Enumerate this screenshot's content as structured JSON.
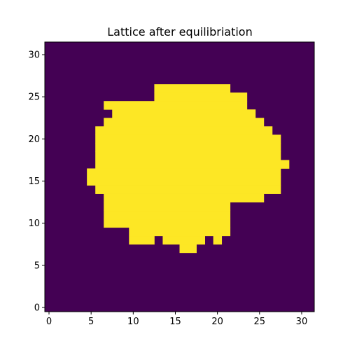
{
  "chart_data": {
    "type": "heatmap",
    "title": "Lattice after equilibriation",
    "xlabel": "",
    "ylabel": "",
    "xlim": [
      -0.5,
      31.5
    ],
    "ylim": [
      -0.5,
      31.5
    ],
    "origin": "lower",
    "grid_size": [
      32,
      32
    ],
    "x_ticks": [
      0,
      5,
      10,
      15,
      20,
      25,
      30
    ],
    "y_ticks": [
      0,
      5,
      10,
      15,
      20,
      25,
      30
    ],
    "colors": {
      "value_0": "#440154",
      "value_1": "#fde725"
    },
    "rows_with_value_1": [
      {
        "y": 7,
        "runs": [
          [
            16,
            17
          ]
        ]
      },
      {
        "y": 8,
        "runs": [
          [
            10,
            12
          ],
          [
            14,
            18
          ],
          [
            20,
            20
          ]
        ]
      },
      {
        "y": 9,
        "runs": [
          [
            10,
            21
          ]
        ]
      },
      {
        "y": 10,
        "runs": [
          [
            7,
            21
          ]
        ]
      },
      {
        "y": 11,
        "runs": [
          [
            7,
            21
          ]
        ]
      },
      {
        "y": 12,
        "runs": [
          [
            7,
            21
          ]
        ]
      },
      {
        "y": 13,
        "runs": [
          [
            7,
            25
          ]
        ]
      },
      {
        "y": 14,
        "runs": [
          [
            6,
            27
          ]
        ]
      },
      {
        "y": 15,
        "runs": [
          [
            5,
            27
          ]
        ]
      },
      {
        "y": 16,
        "runs": [
          [
            5,
            27
          ]
        ]
      },
      {
        "y": 17,
        "runs": [
          [
            6,
            28
          ]
        ]
      },
      {
        "y": 18,
        "runs": [
          [
            6,
            27
          ]
        ]
      },
      {
        "y": 19,
        "runs": [
          [
            6,
            27
          ]
        ]
      },
      {
        "y": 20,
        "runs": [
          [
            6,
            27
          ]
        ]
      },
      {
        "y": 21,
        "runs": [
          [
            6,
            26
          ]
        ]
      },
      {
        "y": 22,
        "runs": [
          [
            7,
            25
          ]
        ]
      },
      {
        "y": 23,
        "runs": [
          [
            8,
            24
          ]
        ]
      },
      {
        "y": 24,
        "runs": [
          [
            7,
            23
          ]
        ]
      },
      {
        "y": 25,
        "runs": [
          [
            13,
            23
          ]
        ]
      },
      {
        "y": 26,
        "runs": [
          [
            13,
            21
          ]
        ]
      }
    ]
  }
}
